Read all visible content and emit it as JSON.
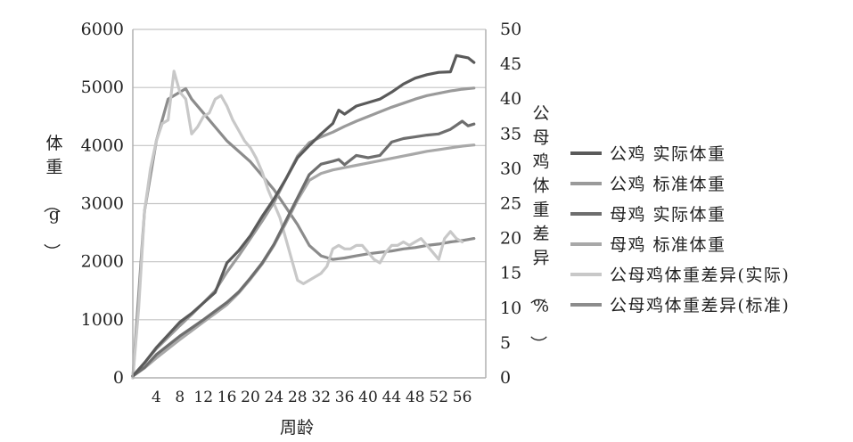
{
  "chart_data": {
    "type": "line",
    "xlabel": "周龄",
    "ylabel": "体重（g）",
    "y2label": "公母鸡体重差异（%）",
    "xlim": [
      0,
      60
    ],
    "ylim": [
      0,
      6000
    ],
    "y2lim": [
      0,
      50
    ],
    "x_ticks": [
      4,
      8,
      12,
      16,
      20,
      24,
      28,
      32,
      36,
      40,
      44,
      48,
      52,
      56
    ],
    "y_ticks": [
      0,
      1000,
      2000,
      3000,
      4000,
      5000,
      6000
    ],
    "y2_ticks": [
      0,
      5,
      10,
      15,
      20,
      25,
      30,
      35,
      40,
      45,
      50
    ],
    "grid": "horizontal",
    "legend_position": "right",
    "series": [
      {
        "name": "公鸡 实际体重",
        "axis": "left",
        "color": "#5a5a5a",
        "points": [
          [
            0,
            30
          ],
          [
            2,
            260
          ],
          [
            4,
            520
          ],
          [
            6,
            740
          ],
          [
            8,
            960
          ],
          [
            10,
            1110
          ],
          [
            12,
            1290
          ],
          [
            14,
            1470
          ],
          [
            16,
            1980
          ],
          [
            18,
            2190
          ],
          [
            20,
            2450
          ],
          [
            22,
            2780
          ],
          [
            24,
            3080
          ],
          [
            26,
            3420
          ],
          [
            28,
            3790
          ],
          [
            30,
            4000
          ],
          [
            32,
            4200
          ],
          [
            34,
            4380
          ],
          [
            35,
            4610
          ],
          [
            36,
            4540
          ],
          [
            38,
            4680
          ],
          [
            40,
            4740
          ],
          [
            42,
            4800
          ],
          [
            44,
            4920
          ],
          [
            46,
            5060
          ],
          [
            48,
            5160
          ],
          [
            50,
            5220
          ],
          [
            52,
            5260
          ],
          [
            54,
            5270
          ],
          [
            55,
            5550
          ],
          [
            57,
            5510
          ],
          [
            58,
            5430
          ]
        ]
      },
      {
        "name": "公鸡 标准体重",
        "axis": "left",
        "color": "#9a9a9a",
        "points": [
          [
            0,
            30
          ],
          [
            2,
            260
          ],
          [
            4,
            500
          ],
          [
            6,
            700
          ],
          [
            8,
            900
          ],
          [
            10,
            1090
          ],
          [
            12,
            1290
          ],
          [
            14,
            1500
          ],
          [
            16,
            1820
          ],
          [
            18,
            2100
          ],
          [
            20,
            2400
          ],
          [
            22,
            2700
          ],
          [
            24,
            3020
          ],
          [
            26,
            3420
          ],
          [
            28,
            3820
          ],
          [
            30,
            4050
          ],
          [
            32,
            4150
          ],
          [
            34,
            4230
          ],
          [
            36,
            4330
          ],
          [
            38,
            4420
          ],
          [
            40,
            4500
          ],
          [
            42,
            4580
          ],
          [
            44,
            4660
          ],
          [
            46,
            4730
          ],
          [
            48,
            4800
          ],
          [
            50,
            4860
          ],
          [
            52,
            4900
          ],
          [
            54,
            4940
          ],
          [
            56,
            4970
          ],
          [
            58,
            4990
          ]
        ]
      },
      {
        "name": "母鸡 实际体重",
        "axis": "left",
        "color": "#6e6e6e",
        "points": [
          [
            0,
            30
          ],
          [
            2,
            180
          ],
          [
            4,
            400
          ],
          [
            6,
            560
          ],
          [
            8,
            720
          ],
          [
            10,
            860
          ],
          [
            12,
            1000
          ],
          [
            14,
            1150
          ],
          [
            16,
            1300
          ],
          [
            18,
            1480
          ],
          [
            20,
            1720
          ],
          [
            22,
            1980
          ],
          [
            24,
            2300
          ],
          [
            26,
            2700
          ],
          [
            28,
            3100
          ],
          [
            30,
            3500
          ],
          [
            32,
            3680
          ],
          [
            34,
            3730
          ],
          [
            35,
            3760
          ],
          [
            36,
            3670
          ],
          [
            38,
            3830
          ],
          [
            40,
            3790
          ],
          [
            42,
            3830
          ],
          [
            44,
            4060
          ],
          [
            46,
            4120
          ],
          [
            48,
            4150
          ],
          [
            50,
            4180
          ],
          [
            52,
            4200
          ],
          [
            54,
            4280
          ],
          [
            56,
            4420
          ],
          [
            57,
            4340
          ],
          [
            58,
            4370
          ]
        ]
      },
      {
        "name": "母鸡 标准体重",
        "axis": "left",
        "color": "#a8a8a8",
        "points": [
          [
            0,
            30
          ],
          [
            2,
            170
          ],
          [
            4,
            340
          ],
          [
            6,
            500
          ],
          [
            8,
            660
          ],
          [
            10,
            810
          ],
          [
            12,
            960
          ],
          [
            14,
            1110
          ],
          [
            16,
            1260
          ],
          [
            18,
            1460
          ],
          [
            20,
            1700
          ],
          [
            22,
            1960
          ],
          [
            24,
            2280
          ],
          [
            26,
            2660
          ],
          [
            28,
            3060
          ],
          [
            30,
            3400
          ],
          [
            32,
            3520
          ],
          [
            34,
            3580
          ],
          [
            36,
            3620
          ],
          [
            38,
            3660
          ],
          [
            40,
            3700
          ],
          [
            42,
            3740
          ],
          [
            44,
            3780
          ],
          [
            46,
            3820
          ],
          [
            48,
            3860
          ],
          [
            50,
            3900
          ],
          [
            52,
            3930
          ],
          [
            54,
            3960
          ],
          [
            56,
            3990
          ],
          [
            58,
            4010
          ]
        ]
      },
      {
        "name": "公母鸡体重差异(实际)",
        "axis": "right",
        "color": "#c8c8c8",
        "points": [
          [
            0,
            0
          ],
          [
            1,
            10
          ],
          [
            2,
            24
          ],
          [
            3,
            30
          ],
          [
            4,
            34
          ],
          [
            5,
            36.5
          ],
          [
            6,
            37
          ],
          [
            7,
            44
          ],
          [
            8,
            41
          ],
          [
            9,
            40
          ],
          [
            10,
            35
          ],
          [
            11,
            36
          ],
          [
            12,
            37.5
          ],
          [
            13,
            38
          ],
          [
            14,
            40
          ],
          [
            15,
            40.5
          ],
          [
            16,
            39
          ],
          [
            17,
            37
          ],
          [
            18,
            35.5
          ],
          [
            19,
            34
          ],
          [
            20,
            33
          ],
          [
            21,
            31.5
          ],
          [
            22,
            29.5
          ],
          [
            23,
            27
          ],
          [
            24,
            25
          ],
          [
            25,
            23
          ],
          [
            26,
            20
          ],
          [
            27,
            17
          ],
          [
            28,
            14
          ],
          [
            29,
            13.5
          ],
          [
            30,
            14
          ],
          [
            31,
            14.5
          ],
          [
            32,
            15
          ],
          [
            33,
            16
          ],
          [
            34,
            18.5
          ],
          [
            35,
            19
          ],
          [
            36,
            18.5
          ],
          [
            37,
            18.5
          ],
          [
            38,
            19
          ],
          [
            39,
            19
          ],
          [
            40,
            18
          ],
          [
            41,
            17
          ],
          [
            42,
            16.5
          ],
          [
            43,
            18
          ],
          [
            44,
            19
          ],
          [
            45,
            19
          ],
          [
            46,
            19.5
          ],
          [
            47,
            19
          ],
          [
            48,
            19.5
          ],
          [
            49,
            20
          ],
          [
            50,
            19
          ],
          [
            51,
            18
          ],
          [
            52,
            17
          ],
          [
            53,
            20
          ],
          [
            54,
            21
          ],
          [
            55,
            20
          ],
          [
            56,
            19.5
          ]
        ]
      },
      {
        "name": "公母鸡体重差异(标准)",
        "axis": "right",
        "color": "#8c8c8c",
        "points": [
          [
            0,
            0
          ],
          [
            2,
            24
          ],
          [
            4,
            34
          ],
          [
            6,
            40
          ],
          [
            8,
            41
          ],
          [
            9,
            41.5
          ],
          [
            10,
            40
          ],
          [
            12,
            38
          ],
          [
            14,
            36
          ],
          [
            16,
            34
          ],
          [
            18,
            32.5
          ],
          [
            20,
            31
          ],
          [
            22,
            29
          ],
          [
            24,
            27
          ],
          [
            26,
            24.5
          ],
          [
            28,
            22
          ],
          [
            30,
            19
          ],
          [
            32,
            17.5
          ],
          [
            34,
            17
          ],
          [
            36,
            17.2
          ],
          [
            38,
            17.5
          ],
          [
            40,
            17.8
          ],
          [
            42,
            18
          ],
          [
            44,
            18.2
          ],
          [
            46,
            18.5
          ],
          [
            48,
            18.7
          ],
          [
            50,
            19
          ],
          [
            52,
            19.2
          ],
          [
            54,
            19.5
          ],
          [
            56,
            19.7
          ],
          [
            58,
            20
          ]
        ]
      }
    ]
  }
}
